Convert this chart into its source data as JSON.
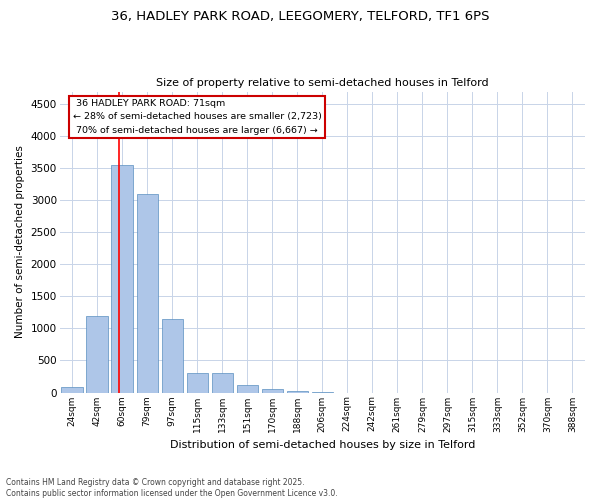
{
  "title1": "36, HADLEY PARK ROAD, LEEGOMERY, TELFORD, TF1 6PS",
  "title2": "Size of property relative to semi-detached houses in Telford",
  "xlabel": "Distribution of semi-detached houses by size in Telford",
  "ylabel": "Number of semi-detached properties",
  "categories": [
    "24sqm",
    "42sqm",
    "60sqm",
    "79sqm",
    "97sqm",
    "115sqm",
    "133sqm",
    "151sqm",
    "170sqm",
    "188sqm",
    "206sqm",
    "224sqm",
    "242sqm",
    "261sqm",
    "279sqm",
    "297sqm",
    "315sqm",
    "333sqm",
    "352sqm",
    "370sqm",
    "388sqm"
  ],
  "values": [
    80,
    1200,
    3550,
    3100,
    1150,
    310,
    310,
    110,
    60,
    25,
    5,
    0,
    0,
    0,
    0,
    0,
    0,
    0,
    0,
    0,
    0
  ],
  "bar_color": "#aec6e8",
  "bar_edge_color": "#5a8fc0",
  "property_label": "36 HADLEY PARK ROAD: 71sqm",
  "smaller_pct": 28,
  "smaller_count": 2723,
  "larger_pct": 70,
  "larger_count": 6667,
  "vline_x": 1.87,
  "ylim": [
    0,
    4700
  ],
  "yticks": [
    0,
    500,
    1000,
    1500,
    2000,
    2500,
    3000,
    3500,
    4000,
    4500
  ],
  "annotation_box_color": "#ffffff",
  "annotation_box_edge": "#cc0000",
  "footer1": "Contains HM Land Registry data © Crown copyright and database right 2025.",
  "footer2": "Contains public sector information licensed under the Open Government Licence v3.0.",
  "background_color": "#ffffff",
  "grid_color": "#c8d4e8"
}
